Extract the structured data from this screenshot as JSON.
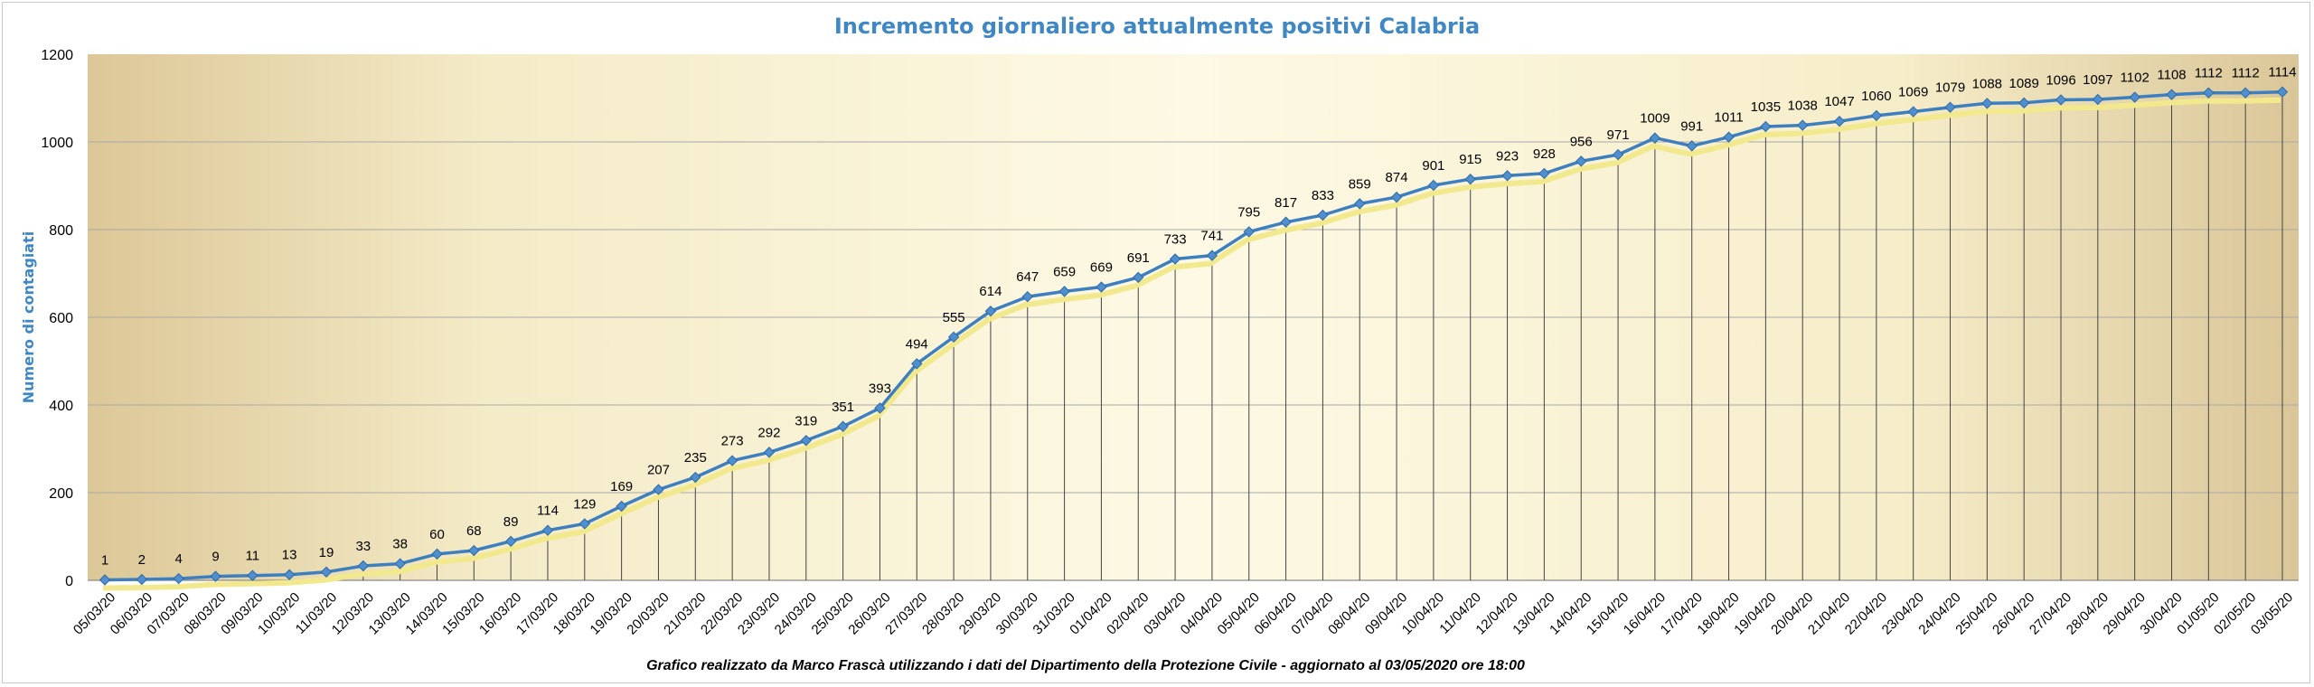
{
  "chart_data": {
    "type": "line",
    "title": "Incremento giornaliero attualmente positivi Calabria",
    "xlabel": "",
    "ylabel": "Numero di contagiati",
    "ylim": [
      0,
      1200
    ],
    "yticks": [
      0,
      200,
      400,
      600,
      800,
      1000,
      1200
    ],
    "grid": true,
    "legend": "none",
    "categories": [
      "05/03/20",
      "06/03/20",
      "07/03/20",
      "08/03/20",
      "09/03/20",
      "10/03/20",
      "11/03/20",
      "12/03/20",
      "13/03/20",
      "14/03/20",
      "15/03/20",
      "16/03/20",
      "17/03/20",
      "18/03/20",
      "19/03/20",
      "20/03/20",
      "21/03/20",
      "22/03/20",
      "23/03/20",
      "24/03/20",
      "25/03/20",
      "26/03/20",
      "27/03/20",
      "28/03/20",
      "29/03/20",
      "30/03/20",
      "31/03/20",
      "01/04/20",
      "02/04/20",
      "03/04/20",
      "04/04/20",
      "05/04/20",
      "06/04/20",
      "07/04/20",
      "08/04/20",
      "09/04/20",
      "10/04/20",
      "11/04/20",
      "12/04/20",
      "13/04/20",
      "14/04/20",
      "15/04/20",
      "16/04/20",
      "17/04/20",
      "18/04/20",
      "19/04/20",
      "20/04/20",
      "21/04/20",
      "22/04/20",
      "23/04/20",
      "24/04/20",
      "25/04/20",
      "26/04/20",
      "27/04/20",
      "28/04/20",
      "29/04/20",
      "30/04/20",
      "01/05/20",
      "02/05/20",
      "03/05/20"
    ],
    "values": [
      1,
      2,
      4,
      9,
      11,
      13,
      19,
      33,
      38,
      60,
      68,
      89,
      114,
      129,
      169,
      207,
      235,
      273,
      292,
      319,
      351,
      393,
      494,
      555,
      614,
      647,
      659,
      669,
      691,
      733,
      741,
      795,
      817,
      833,
      859,
      874,
      901,
      915,
      923,
      928,
      956,
      971,
      1009,
      991,
      1011,
      1035,
      1038,
      1047,
      1060,
      1069,
      1079,
      1088,
      1089,
      1096,
      1097,
      1102,
      1108,
      1112,
      1112,
      1114
    ],
    "footer": "Grafico  realizzato da Marco Frascà  utilizzando i dati del Dipartimento  della Protezione Civile  - aggiornato al 03/05/2020 ore 18:00"
  },
  "colors": {
    "line": "#3d7fbf",
    "marker": "#4f8fcf",
    "shadow": "#f2e98e",
    "title": "#3f87c5"
  }
}
